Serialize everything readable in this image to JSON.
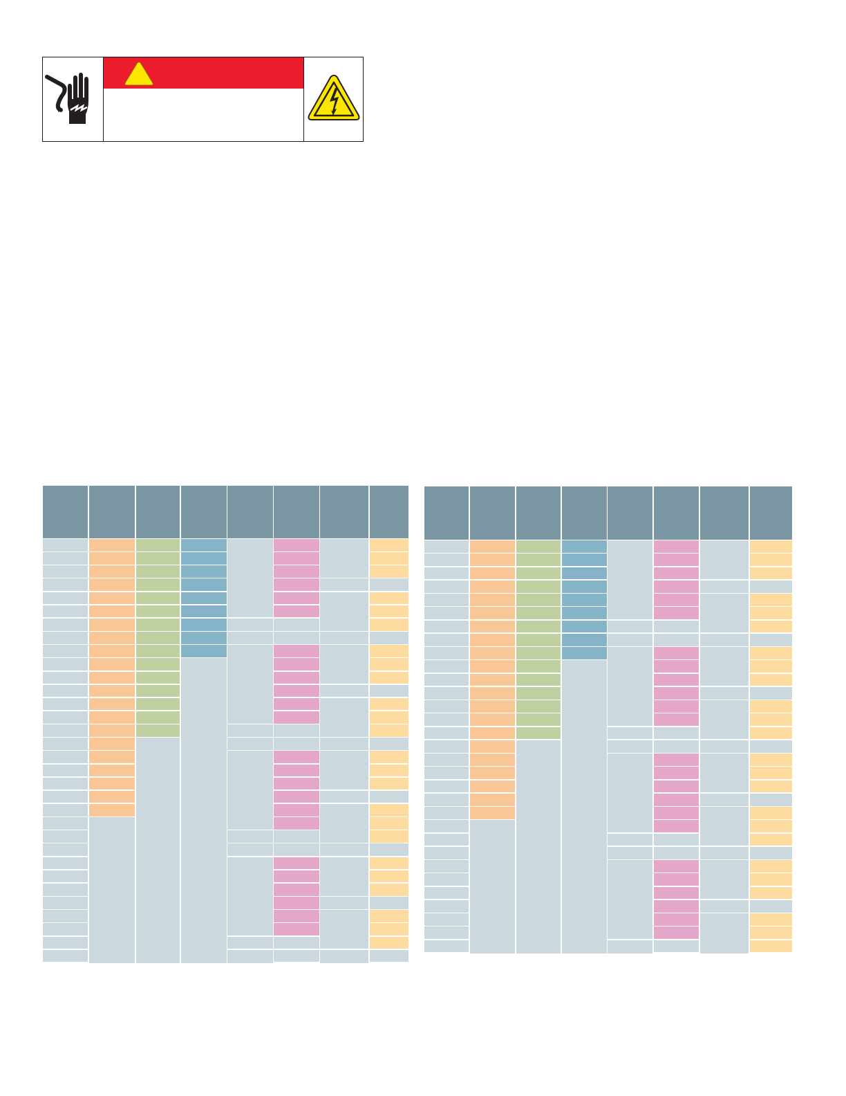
{
  "colors": {
    "danger_red": "#ec1c2c",
    "caution_yellow": "#fde700",
    "icon_black": "#231f20",
    "header": "#7b97a4",
    "grey": "#cbd8dd",
    "orange": "#f9c797",
    "green": "#bfd1a0",
    "blue": "#85b4c9",
    "pink": "#e4a7ca",
    "yellow": "#fddb9e",
    "divider": "#ffffff"
  },
  "warning_label": {
    "left_icon": "electric-shock-hand-icon",
    "banner_icon": "warning-triangle-icon",
    "right_icon": "high-voltage-icon",
    "signal_word": "",
    "body_text": ""
  },
  "tables": [
    {
      "name": "left-table",
      "column_count": 8,
      "row_count": 32,
      "headers": [
        "",
        "",
        "",
        "",
        "",
        "",
        "",
        ""
      ],
      "columns": [
        {
          "fill": "grey",
          "colored_rows": 0,
          "segments": "each"
        },
        {
          "fill": "orange",
          "colored_rows": 21,
          "segments": "each-then-merged"
        },
        {
          "fill": "green",
          "colored_rows": 15,
          "segments": "each-then-merged"
        },
        {
          "fill": "blue",
          "colored_rows": 9,
          "segments": "each-then-merged"
        },
        {
          "fill": "grey",
          "pattern": [
            6,
            1,
            1
          ],
          "segments": "groups"
        },
        {
          "fill": "pink",
          "pattern_colors": [
            "pink",
            "pink",
            "pink",
            "pink",
            "pink",
            "pink",
            "grey",
            "grey"
          ],
          "segments": "each"
        },
        {
          "fill": "grey",
          "pattern": [
            3,
            1,
            3,
            1
          ],
          "segments": "groups"
        },
        {
          "fill": "yellow",
          "pattern_colors": [
            "yellow",
            "yellow",
            "yellow",
            "grey",
            "yellow",
            "yellow",
            "yellow",
            "grey"
          ],
          "segments": "each"
        }
      ]
    },
    {
      "name": "right-table",
      "column_count": 8,
      "row_count": 31,
      "headers": [
        "",
        "",
        "",
        "",
        "",
        "",
        "",
        ""
      ],
      "columns": [
        {
          "fill": "grey",
          "colored_rows": 0,
          "segments": "each"
        },
        {
          "fill": "orange",
          "colored_rows": 21,
          "segments": "each-then-merged"
        },
        {
          "fill": "green",
          "colored_rows": 15,
          "segments": "each-then-merged"
        },
        {
          "fill": "blue",
          "colored_rows": 9,
          "segments": "each-then-merged"
        },
        {
          "fill": "grey",
          "pattern": [
            6,
            1,
            1
          ],
          "segments": "groups"
        },
        {
          "fill": "pink",
          "pattern_colors": [
            "pink",
            "pink",
            "pink",
            "pink",
            "pink",
            "pink",
            "grey",
            "grey"
          ],
          "segments": "each"
        },
        {
          "fill": "grey",
          "pattern": [
            3,
            1,
            3,
            1
          ],
          "segments": "groups"
        },
        {
          "fill": "yellow",
          "pattern_colors": [
            "yellow",
            "yellow",
            "yellow",
            "grey",
            "yellow",
            "yellow",
            "yellow",
            "grey"
          ],
          "segments": "each"
        }
      ]
    }
  ]
}
